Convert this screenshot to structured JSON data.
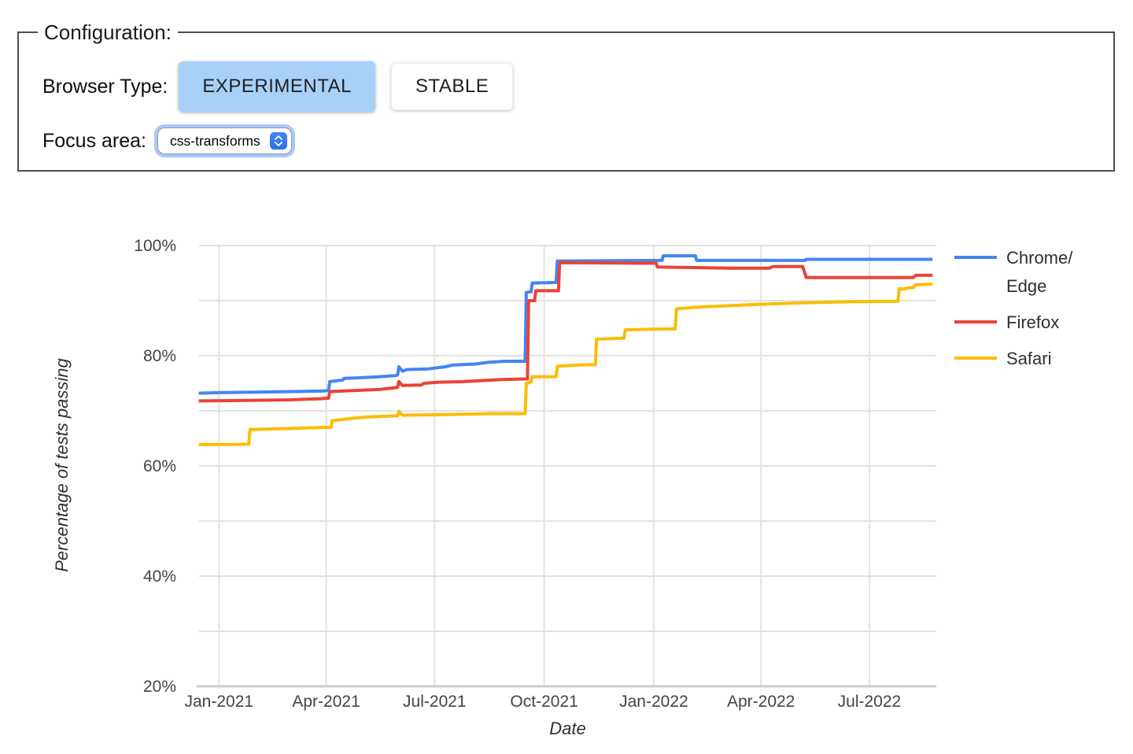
{
  "config_panel": {
    "legend": "Configuration:",
    "browser_type": {
      "label": "Browser Type:",
      "options": [
        {
          "label": "EXPERIMENTAL",
          "selected": true
        },
        {
          "label": "STABLE",
          "selected": false
        }
      ]
    },
    "focus_area": {
      "label": "Focus area:",
      "selected_option": "css-transforms",
      "stepper_icon": "up-down-chevrons"
    }
  },
  "colors": {
    "selected_button_bg": "#a9d1f8",
    "focus_ring": "#a9c8fb",
    "stepper_blue": "#3478f6",
    "gridline": "#e2e2e2",
    "axis_line": "#cccccc",
    "tick_text": "#444444"
  },
  "chart_data": {
    "type": "line",
    "title": "",
    "xlabel": "Date",
    "ylabel": "Percentage of tests passing",
    "x_unit": "days since 2021-01-01",
    "xlim_days": [
      -17,
      599
    ],
    "ylim": [
      20,
      100
    ],
    "y_ticks": [
      20,
      40,
      60,
      80,
      100
    ],
    "y_minor_grid_step": 10,
    "y_tick_suffix": "%",
    "grid": true,
    "legend_position": "right",
    "x_ticks": [
      {
        "d": 0,
        "label": "Jan-2021"
      },
      {
        "d": 90,
        "label": "Apr-2021"
      },
      {
        "d": 181,
        "label": "Jul-2021"
      },
      {
        "d": 273,
        "label": "Oct-2021"
      },
      {
        "d": 365,
        "label": "Jan-2022"
      },
      {
        "d": 455,
        "label": "Apr-2022"
      },
      {
        "d": 546,
        "label": "Jul-2022"
      }
    ],
    "series": [
      {
        "name": "Chrome/Edge",
        "label_lines": [
          "Chrome/",
          "Edge"
        ],
        "color": "#4285F4",
        "points": [
          [
            -17,
            73.2
          ],
          [
            0,
            73.3
          ],
          [
            30,
            73.4
          ],
          [
            62,
            73.5
          ],
          [
            88,
            73.6
          ],
          [
            92,
            73.7
          ],
          [
            93,
            75.3
          ],
          [
            104,
            75.6
          ],
          [
            105,
            75.9
          ],
          [
            118,
            76.0
          ],
          [
            135,
            76.2
          ],
          [
            148,
            76.4
          ],
          [
            150,
            76.5
          ],
          [
            151,
            78.0
          ],
          [
            154,
            77.2
          ],
          [
            158,
            77.5
          ],
          [
            175,
            77.6
          ],
          [
            190,
            78.0
          ],
          [
            196,
            78.3
          ],
          [
            215,
            78.5
          ],
          [
            226,
            78.8
          ],
          [
            240,
            79.0
          ],
          [
            257,
            79.0
          ],
          [
            258,
            91.5
          ],
          [
            262,
            91.6
          ],
          [
            263,
            93.2
          ],
          [
            283,
            93.3
          ],
          [
            284,
            97.2
          ],
          [
            330,
            97.25
          ],
          [
            372,
            97.3
          ],
          [
            373,
            98.15
          ],
          [
            400,
            98.15
          ],
          [
            401,
            97.3
          ],
          [
            492,
            97.3
          ],
          [
            493,
            97.5
          ],
          [
            599,
            97.5
          ]
        ]
      },
      {
        "name": "Firefox",
        "label_lines": [
          "Firefox"
        ],
        "color": "#EA4335",
        "points": [
          [
            -17,
            71.8
          ],
          [
            25,
            71.9
          ],
          [
            60,
            72.0
          ],
          [
            85,
            72.2
          ],
          [
            92,
            72.3
          ],
          [
            93,
            73.5
          ],
          [
            115,
            73.7
          ],
          [
            135,
            73.9
          ],
          [
            148,
            74.2
          ],
          [
            150,
            74.3
          ],
          [
            151,
            75.3
          ],
          [
            154,
            74.6
          ],
          [
            170,
            74.7
          ],
          [
            172,
            75.0
          ],
          [
            185,
            75.2
          ],
          [
            205,
            75.3
          ],
          [
            221,
            75.5
          ],
          [
            240,
            75.7
          ],
          [
            259,
            75.8
          ],
          [
            260,
            90.0
          ],
          [
            265,
            90.0
          ],
          [
            266,
            91.8
          ],
          [
            285,
            91.8
          ],
          [
            286,
            96.9
          ],
          [
            320,
            96.85
          ],
          [
            350,
            96.8
          ],
          [
            367,
            96.8
          ],
          [
            368,
            96.1
          ],
          [
            400,
            96.0
          ],
          [
            430,
            95.9
          ],
          [
            462,
            95.9
          ],
          [
            465,
            96.2
          ],
          [
            490,
            96.2
          ],
          [
            493,
            94.2
          ],
          [
            583,
            94.2
          ],
          [
            585,
            94.6
          ],
          [
            599,
            94.6
          ]
        ]
      },
      {
        "name": "Safari",
        "label_lines": [
          "Safari"
        ],
        "color": "#FBBC04",
        "points": [
          [
            -17,
            63.9
          ],
          [
            10,
            63.9
          ],
          [
            25,
            63.95
          ],
          [
            26,
            66.6
          ],
          [
            60,
            66.8
          ],
          [
            88,
            67.0
          ],
          [
            94,
            67.0
          ],
          [
            95,
            68.2
          ],
          [
            110,
            68.6
          ],
          [
            125,
            68.9
          ],
          [
            150,
            69.1
          ],
          [
            151,
            69.9
          ],
          [
            154,
            69.2
          ],
          [
            185,
            69.3
          ],
          [
            230,
            69.5
          ],
          [
            257,
            69.5
          ],
          [
            258,
            75.0
          ],
          [
            262,
            75.2
          ],
          [
            263,
            76.2
          ],
          [
            283,
            76.2
          ],
          [
            284,
            78.1
          ],
          [
            300,
            78.3
          ],
          [
            316,
            78.4
          ],
          [
            317,
            83.0
          ],
          [
            340,
            83.2
          ],
          [
            341,
            84.7
          ],
          [
            360,
            84.8
          ],
          [
            383,
            84.9
          ],
          [
            384,
            88.5
          ],
          [
            400,
            88.8
          ],
          [
            420,
            89.0
          ],
          [
            450,
            89.3
          ],
          [
            490,
            89.6
          ],
          [
            530,
            89.8
          ],
          [
            570,
            89.9
          ],
          [
            571,
            92.2
          ],
          [
            574,
            92.1
          ],
          [
            578,
            92.3
          ],
          [
            583,
            92.4
          ],
          [
            585,
            92.9
          ],
          [
            599,
            93.0
          ]
        ]
      }
    ]
  }
}
